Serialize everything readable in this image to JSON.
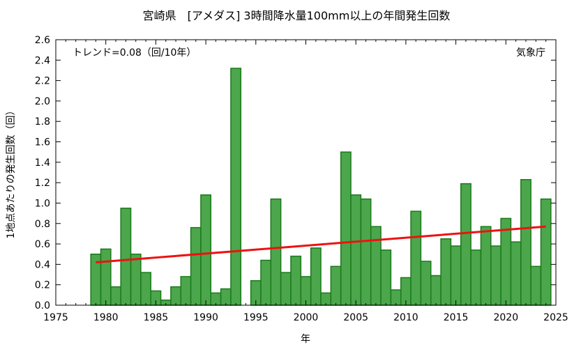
{
  "chart_data": {
    "type": "bar",
    "title": "宮崎県　[アメダス] 3時間降水量100mm以上の年間発生回数",
    "xlabel": "年",
    "ylabel": "1地点あたりの発生回数（回）",
    "trend_label": "トレンド=0.08（回/10年）",
    "source_label": "気象庁",
    "xlim": [
      1975,
      2025
    ],
    "ylim": [
      0,
      2.6
    ],
    "x_ticks": [
      1975,
      1980,
      1985,
      1990,
      1995,
      2000,
      2005,
      2010,
      2015,
      2020,
      2025
    ],
    "y_ticks": [
      "0.0",
      "0.2",
      "0.4",
      "0.6",
      "0.8",
      "1.0",
      "1.2",
      "1.4",
      "1.6",
      "1.8",
      "2.0",
      "2.2",
      "2.4",
      "2.6"
    ],
    "grid": false,
    "bar_color": "#4ca64c",
    "bar_edge_color": "#1a7a1a",
    "trend_color": "#ee1111",
    "years": [
      1979,
      1980,
      1981,
      1982,
      1983,
      1984,
      1985,
      1986,
      1987,
      1988,
      1989,
      1990,
      1991,
      1992,
      1993,
      1994,
      1995,
      1996,
      1997,
      1998,
      1999,
      2000,
      2001,
      2002,
      2003,
      2004,
      2005,
      2006,
      2007,
      2008,
      2009,
      2010,
      2011,
      2012,
      2013,
      2014,
      2015,
      2016,
      2017,
      2018,
      2019,
      2020,
      2021,
      2022,
      2023,
      2024
    ],
    "values": [
      0.5,
      0.55,
      0.18,
      0.95,
      0.5,
      0.32,
      0.14,
      0.05,
      0.18,
      0.28,
      0.76,
      1.08,
      0.12,
      0.16,
      2.32,
      0.0,
      0.24,
      0.44,
      1.04,
      0.32,
      0.48,
      0.28,
      0.56,
      0.12,
      0.38,
      1.5,
      1.08,
      1.04,
      0.77,
      0.54,
      0.15,
      0.27,
      0.92,
      0.43,
      0.29,
      0.65,
      0.58,
      1.19,
      0.54,
      0.77,
      0.58,
      0.85,
      0.62,
      1.23,
      0.38,
      1.04
    ],
    "trend": {
      "x": [
        1979,
        2024
      ],
      "y": [
        0.42,
        0.77
      ]
    }
  }
}
